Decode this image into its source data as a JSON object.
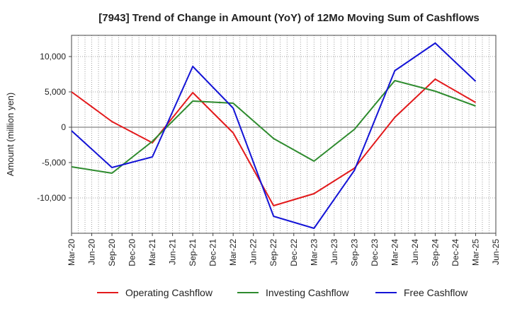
{
  "chart_data": {
    "type": "line",
    "title": "[7943]  Trend of Change in Amount (YoY) of 12Mo Moving Sum of Cashflows",
    "xlabel": "",
    "ylabel": "Amount (million yen)",
    "categories": [
      "Mar-20",
      "Jun-20",
      "Sep-20",
      "Dec-20",
      "Mar-21",
      "Jun-21",
      "Sep-21",
      "Dec-21",
      "Mar-22",
      "Jun-22",
      "Sep-22",
      "Dec-22",
      "Mar-23",
      "Jun-23",
      "Sep-23",
      "Dec-23",
      "Mar-24",
      "Jun-24",
      "Sep-24",
      "Dec-24",
      "Mar-25",
      "Jun-25"
    ],
    "ylim": [
      -15000,
      13000
    ],
    "yticks": [
      10000,
      5000,
      0,
      -5000,
      -10000
    ],
    "ytick_labels": [
      "10,000",
      "5,000",
      "0",
      "-5,000",
      "-10,000"
    ],
    "grid": true,
    "legend_position": "bottom",
    "series": [
      {
        "name": "Operating Cashflow",
        "color": "#e31a1c",
        "values": [
          5000,
          null,
          800,
          null,
          -2200,
          null,
          4900,
          null,
          -800,
          null,
          -11100,
          null,
          -9400,
          null,
          -5800,
          null,
          1400,
          null,
          6800,
          null,
          3500,
          null
        ]
      },
      {
        "name": "Investing Cashflow",
        "color": "#2e8b2e",
        "values": [
          -5600,
          null,
          -6500,
          null,
          -2000,
          null,
          3700,
          null,
          3400,
          null,
          -1600,
          null,
          -4800,
          null,
          -300,
          null,
          6600,
          null,
          5100,
          null,
          3000,
          null
        ]
      },
      {
        "name": "Free Cashflow",
        "color": "#1414d6",
        "values": [
          -500,
          null,
          -5700,
          null,
          -4200,
          null,
          8600,
          null,
          2700,
          null,
          -12600,
          null,
          -14300,
          null,
          -6100,
          null,
          8000,
          null,
          11900,
          null,
          6500,
          null
        ]
      }
    ]
  }
}
